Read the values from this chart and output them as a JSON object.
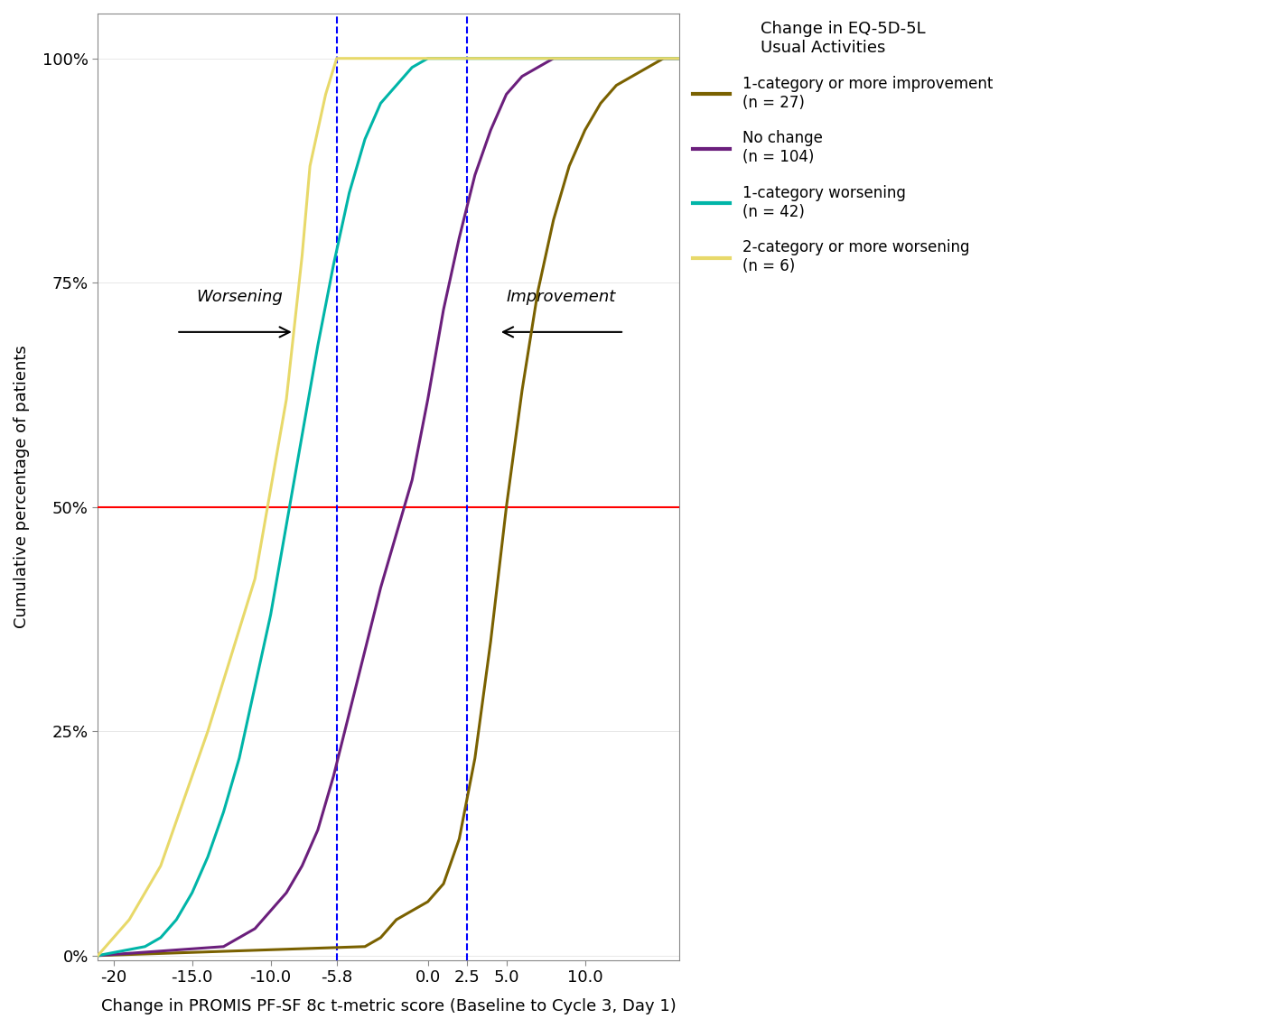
{
  "xlabel": "Change in PROMIS PF-SF 8c t-metric score (Baseline to Cycle 3, Day 1)",
  "ylabel": "Cumulative percentage of patients",
  "xlim": [
    -21,
    16
  ],
  "vline1": -5.8,
  "vline2": 2.5,
  "hline": 0.5,
  "background_color": "#ffffff",
  "legend_title": "Change in EQ-5D-5L\nUsual Activities",
  "series": [
    {
      "label": "1-category or more improvement\n(n = 27)",
      "color": "#7a6100"
    },
    {
      "label": "No change\n(n = 104)",
      "color": "#6b1f7c"
    },
    {
      "label": "1-category worsening\n(n = 42)",
      "color": "#00b5a8"
    },
    {
      "label": "2-category or more worsening\n(n = 6)",
      "color": "#e8d96a"
    }
  ],
  "worsening_text": "Worsening",
  "improvement_text": "Improvement",
  "improve_x": [
    -21,
    -4,
    -3,
    -2,
    -1,
    0,
    1,
    2,
    3,
    4,
    5,
    6,
    7,
    8,
    9,
    10,
    11,
    12,
    13,
    14,
    15,
    16
  ],
  "improve_y": [
    0,
    0.01,
    0.02,
    0.04,
    0.05,
    0.06,
    0.08,
    0.13,
    0.22,
    0.35,
    0.5,
    0.63,
    0.74,
    0.82,
    0.88,
    0.92,
    0.95,
    0.97,
    0.98,
    0.99,
    1.0,
    1.0
  ],
  "nochange_x": [
    -21,
    -13,
    -12,
    -11,
    -10,
    -9,
    -8,
    -7,
    -6,
    -5,
    -4,
    -3,
    -2,
    -1,
    0,
    1,
    2,
    3,
    4,
    5,
    6,
    7,
    8,
    9,
    10,
    16
  ],
  "nochange_y": [
    0,
    0.01,
    0.02,
    0.03,
    0.05,
    0.07,
    0.1,
    0.14,
    0.2,
    0.27,
    0.34,
    0.41,
    0.47,
    0.53,
    0.62,
    0.72,
    0.8,
    0.87,
    0.92,
    0.96,
    0.98,
    0.99,
    1.0,
    1.0,
    1.0,
    1.0
  ],
  "worsen1_x": [
    -21,
    -18,
    -17,
    -16,
    -15,
    -14,
    -13,
    -12,
    -11,
    -10,
    -9,
    -8,
    -7,
    -6,
    -5,
    -4,
    -3,
    -2,
    -1,
    0,
    1,
    2,
    3,
    16
  ],
  "worsen1_y": [
    0,
    0.01,
    0.02,
    0.04,
    0.07,
    0.11,
    0.16,
    0.22,
    0.3,
    0.38,
    0.48,
    0.58,
    0.68,
    0.77,
    0.85,
    0.91,
    0.95,
    0.97,
    0.99,
    1.0,
    1.0,
    1.0,
    1.0,
    1.0
  ],
  "worsen2_x": [
    -21,
    -19,
    -17,
    -14,
    -11,
    -9,
    -8,
    -7.5,
    -6.5,
    -5.8,
    16
  ],
  "worsen2_y": [
    0,
    0.04,
    0.1,
    0.25,
    0.42,
    0.62,
    0.78,
    0.88,
    0.96,
    1.0,
    1.0
  ]
}
